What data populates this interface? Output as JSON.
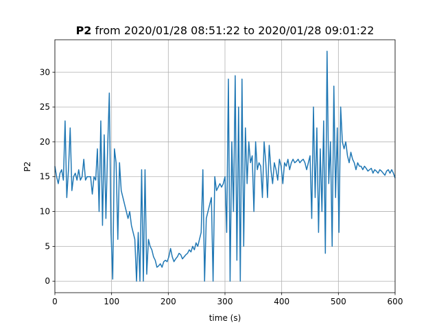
{
  "chart_data": {
    "type": "line",
    "title_parts": [
      {
        "text": "P2",
        "bold": true
      },
      {
        "text": "from 2020/01/28 08:51:22 to 2020/01/28 09:01:22",
        "bold": false
      }
    ],
    "xlabel": "time (s)",
    "ylabel": "P2",
    "xlim": [
      0,
      600
    ],
    "ylim": [
      -1.65,
      34.65
    ],
    "xticks": [
      0,
      100,
      200,
      300,
      400,
      500,
      600
    ],
    "yticks": [
      0,
      5,
      10,
      15,
      20,
      25,
      30
    ],
    "grid": true,
    "x": [
      0,
      3,
      6,
      9,
      12,
      15,
      18,
      21,
      24,
      27,
      30,
      33,
      36,
      39,
      42,
      45,
      48,
      51,
      54,
      57,
      60,
      63,
      66,
      69,
      72,
      75,
      78,
      81,
      84,
      87,
      90,
      93,
      96,
      99,
      102,
      105,
      108,
      111,
      114,
      117,
      120,
      123,
      126,
      129,
      132,
      135,
      138,
      141,
      144,
      147,
      150,
      153,
      156,
      159,
      162,
      165,
      168,
      171,
      174,
      177,
      180,
      183,
      186,
      189,
      192,
      195,
      198,
      201,
      204,
      207,
      210,
      213,
      216,
      219,
      222,
      225,
      228,
      231,
      234,
      237,
      240,
      243,
      246,
      249,
      252,
      255,
      258,
      261,
      264,
      267,
      270,
      273,
      276,
      279,
      282,
      285,
      288,
      291,
      294,
      297,
      300,
      303,
      306,
      309,
      312,
      315,
      318,
      321,
      324,
      327,
      330,
      333,
      336,
      339,
      342,
      345,
      348,
      351,
      354,
      357,
      360,
      363,
      366,
      369,
      372,
      375,
      378,
      381,
      384,
      387,
      390,
      393,
      396,
      399,
      402,
      405,
      408,
      411,
      414,
      417,
      420,
      423,
      426,
      429,
      432,
      435,
      438,
      441,
      444,
      447,
      450,
      453,
      456,
      459,
      462,
      465,
      468,
      471,
      474,
      477,
      480,
      483,
      486,
      489,
      492,
      495,
      498,
      501,
      504,
      507,
      510,
      513,
      516,
      519,
      522,
      525,
      528,
      531,
      534,
      537,
      540,
      543,
      546,
      549,
      552,
      555,
      558,
      561,
      564,
      567,
      570,
      573,
      576,
      579,
      582,
      585,
      588,
      591,
      594,
      597,
      600
    ],
    "series": [
      {
        "color": "#1f77b4",
        "values": [
          16.5,
          15,
          14,
          15.5,
          16,
          14.5,
          23,
          12,
          16,
          22,
          13,
          15,
          15.5,
          14.5,
          16,
          14.5,
          15,
          17.5,
          14.5,
          15,
          15,
          15,
          12.5,
          15,
          14.5,
          19,
          10,
          23,
          8,
          21,
          9,
          19,
          27,
          7,
          0.3,
          19,
          17,
          6,
          17,
          13,
          12,
          11,
          10,
          9,
          10,
          8,
          7,
          6,
          0,
          7,
          0,
          16,
          0,
          16,
          1,
          6,
          5,
          4.5,
          3.5,
          3,
          2,
          2.2,
          2.5,
          2,
          2.8,
          3,
          2.8,
          3.5,
          4.7,
          3.5,
          2.8,
          3.2,
          3.5,
          4,
          3.8,
          3.2,
          3.5,
          3.8,
          4,
          4.5,
          4.2,
          5,
          4.5,
          5.5,
          5,
          6,
          7,
          16,
          0,
          9,
          10,
          11,
          12,
          0,
          15,
          13,
          13.5,
          14,
          13.5,
          14,
          15,
          7,
          29,
          0,
          20,
          10,
          29.5,
          3,
          25,
          0,
          29,
          5,
          22,
          14,
          20,
          17,
          18,
          10,
          20,
          16,
          17,
          16.5,
          12,
          20,
          17,
          12,
          19.5,
          16,
          14,
          17,
          16,
          14.5,
          17.5,
          16.5,
          14,
          17,
          16.5,
          17.5,
          16,
          17,
          17.5,
          17,
          17.2,
          17.5,
          17,
          17.3,
          17.5,
          17,
          16,
          17,
          18,
          9,
          25,
          12,
          22,
          7,
          19,
          10,
          23,
          4,
          33,
          14,
          20,
          5,
          28,
          12,
          22,
          7,
          25,
          20,
          19,
          20,
          18,
          17,
          18.5,
          17.5,
          17,
          16,
          17,
          16.5,
          16.5,
          16,
          16.5,
          16.2,
          15.8,
          16,
          16.2,
          15.5,
          16,
          15.8,
          15.5,
          16,
          15.8,
          15.5,
          15.2,
          15.8,
          16,
          15.5,
          16,
          15.5,
          14.8
        ]
      }
    ]
  }
}
